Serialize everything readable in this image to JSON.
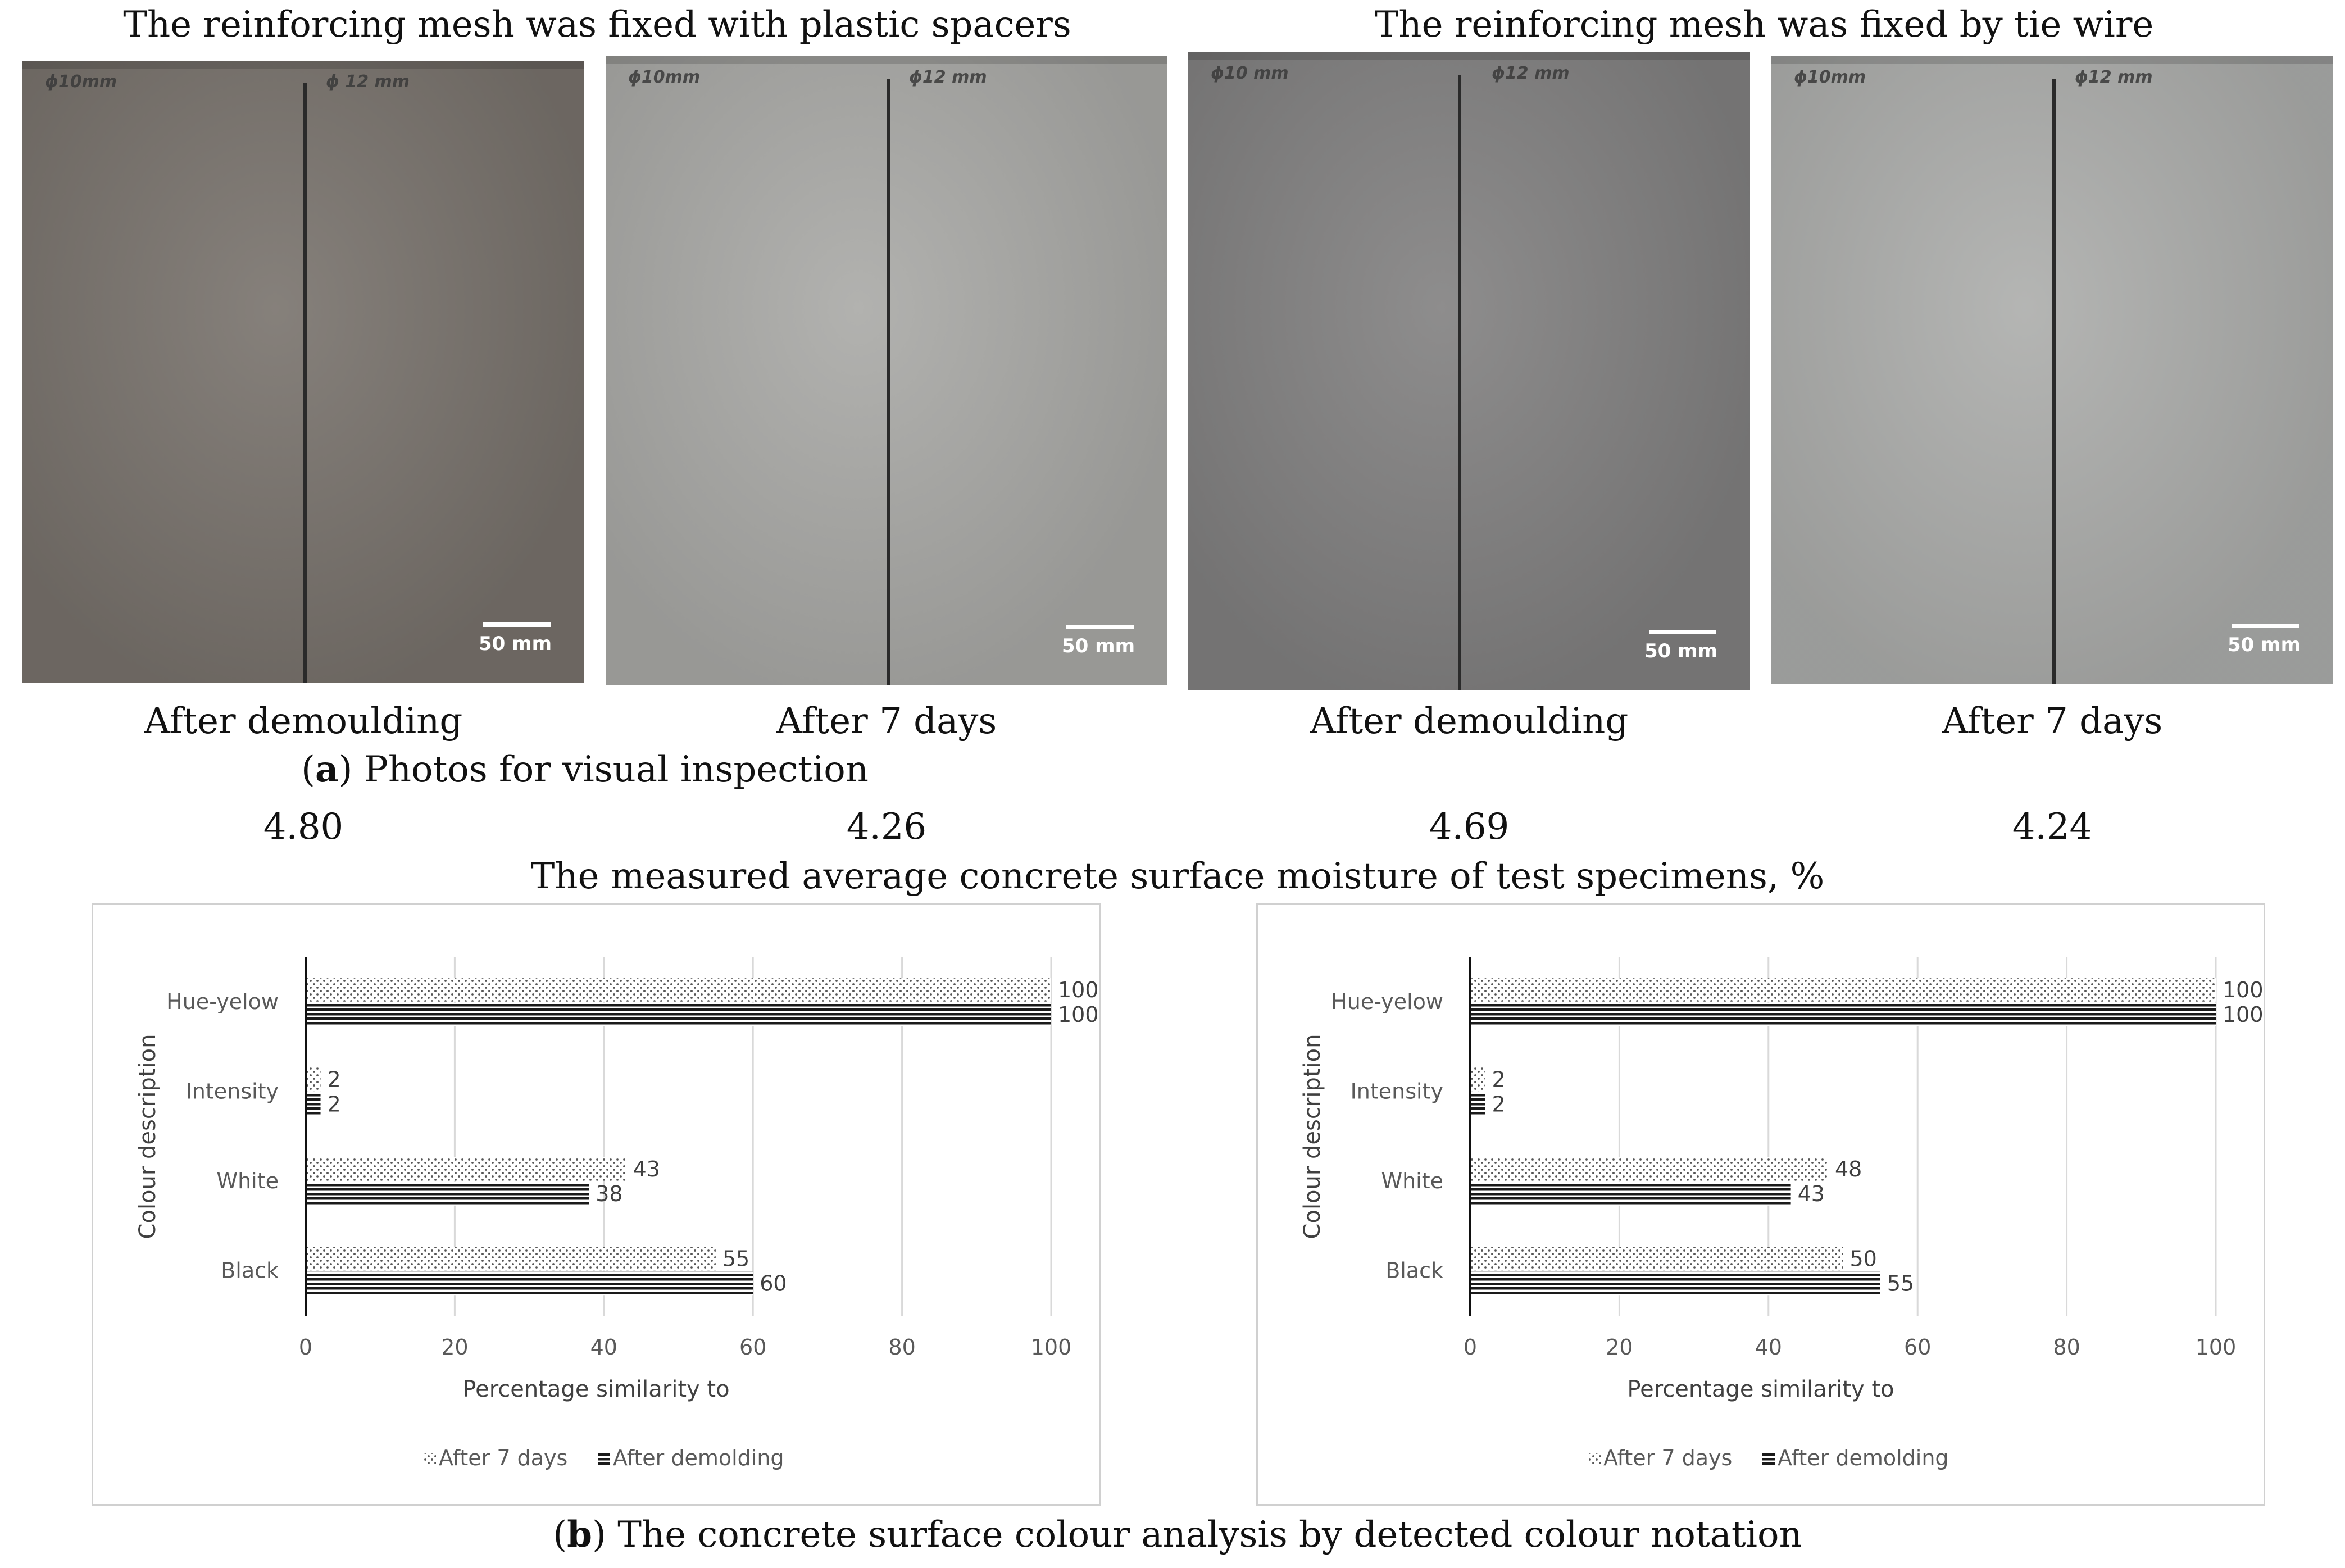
{
  "panel_a": {
    "group_titles": [
      "The reinforcing mesh was fixed with plastic spacers",
      "The reinforcing mesh was fixed by tie wire"
    ],
    "photos": [
      {
        "caption": "After demoulding",
        "moisture": "4.80",
        "mark_left": "ϕ10mm",
        "mark_right": "ϕ 12 mm",
        "scale_label": "50 mm",
        "tone": "#78726c"
      },
      {
        "caption": "After 7 days",
        "moisture": "4.26",
        "mark_left": "ϕ10mm",
        "mark_right": "ϕ12 mm",
        "scale_label": "50 mm",
        "tone": "#a9a9a6"
      },
      {
        "caption": "After demoulding",
        "moisture": "4.69",
        "mark_left": "ϕ10 mm",
        "mark_right": "ϕ12 mm",
        "scale_label": "50 mm",
        "tone": "#818080"
      },
      {
        "caption": "After 7 days",
        "moisture": "4.24",
        "mark_left": "ϕ10mm",
        "mark_right": "ϕ12 mm",
        "scale_label": "50 mm",
        "tone": "#acadab"
      }
    ],
    "caption_letter": "a",
    "caption_text": "Photos for visual inspection",
    "moisture_label": "The measured average concrete surface moisture of test specimens, %"
  },
  "panel_b": {
    "caption_letter": "b",
    "caption_text": "The concrete surface colour analysis by detected colour notation"
  },
  "chart_data": [
    {
      "type": "bar",
      "orientation": "horizontal",
      "categories": [
        "Hue-yelow",
        "Intensity",
        "White",
        "Black"
      ],
      "series": [
        {
          "name": "After 7 days",
          "values": [
            100,
            2,
            43,
            55
          ],
          "pattern": "dots"
        },
        {
          "name": "After demolding",
          "values": [
            100,
            2,
            38,
            60
          ],
          "pattern": "horizontal-lines"
        }
      ],
      "xlabel": "Percentage similarity to",
      "ylabel": "Colour description",
      "xlim": [
        0,
        100
      ],
      "xticks": [
        "0",
        "20",
        "40",
        "60",
        "80",
        "100"
      ],
      "grid": true,
      "legend_position": "bottom"
    },
    {
      "type": "bar",
      "orientation": "horizontal",
      "categories": [
        "Hue-yelow",
        "Intensity",
        "White",
        "Black"
      ],
      "series": [
        {
          "name": "After 7 days",
          "values": [
            100,
            2,
            48,
            50
          ],
          "pattern": "dots"
        },
        {
          "name": "After demolding",
          "values": [
            100,
            2,
            43,
            55
          ],
          "pattern": "horizontal-lines"
        }
      ],
      "xlabel": "Percentage similarity to",
      "ylabel": "Colour description",
      "xlim": [
        0,
        100
      ],
      "xticks": [
        "0",
        "20",
        "40",
        "60",
        "80",
        "100"
      ],
      "grid": true,
      "legend_position": "bottom"
    }
  ]
}
